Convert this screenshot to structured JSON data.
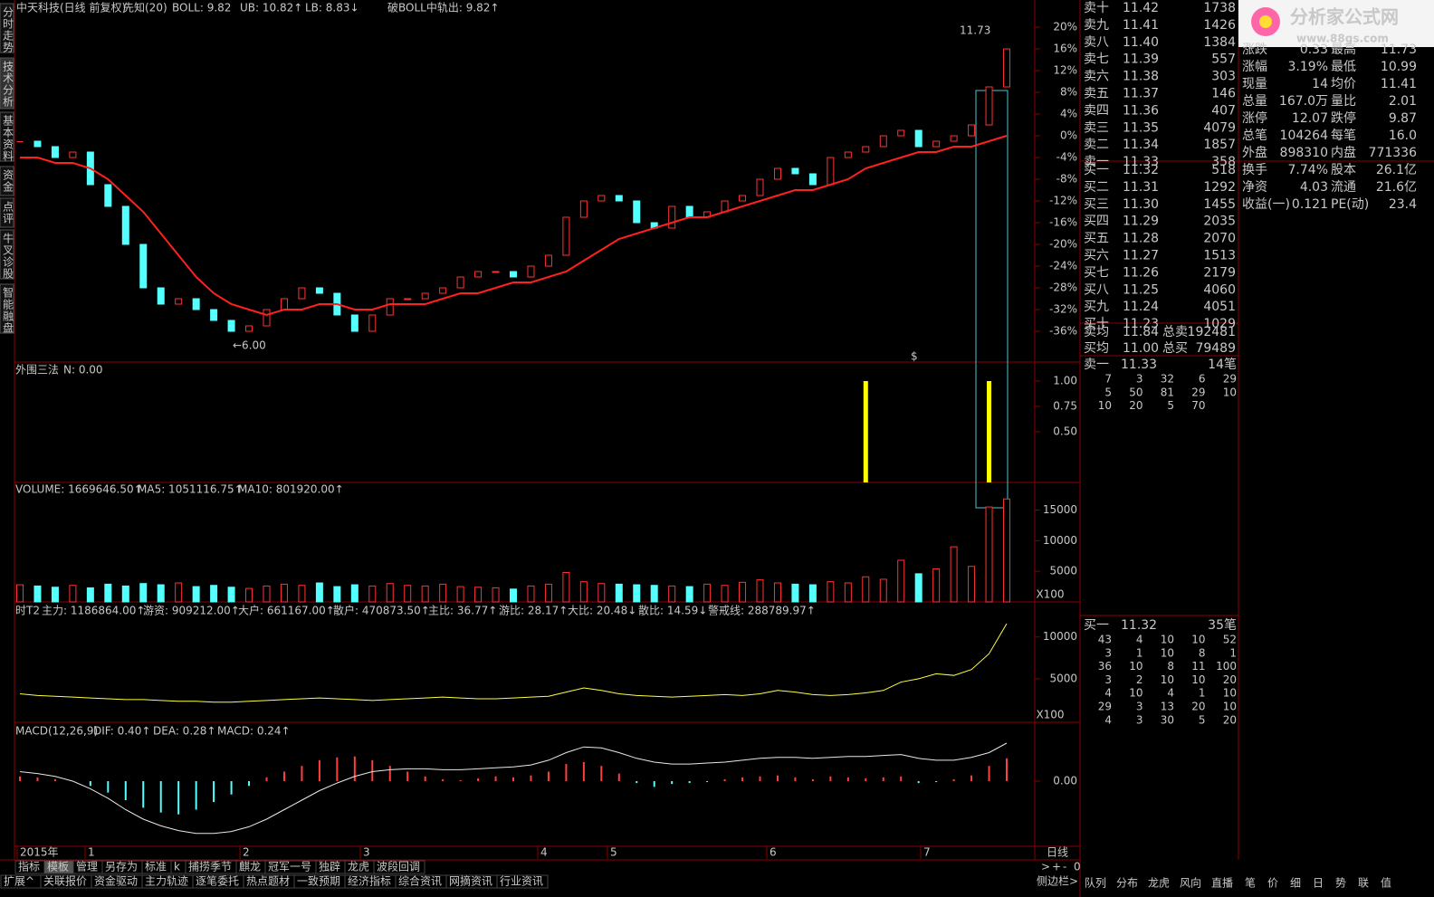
{
  "side_tabs": [
    "分时走势",
    "技术分析",
    "基本资料",
    "资金",
    "点评",
    "牛叉诊股",
    "智能融盘"
  ],
  "header": {
    "stock": "中天科技",
    "period": "(日线 前复权)",
    "indicator": "先知(20)",
    "boll": "BOLL: 9.82",
    "ub": "UB: 10.82↑",
    "lb": "LB: 8.83↓",
    "boll_break": "破BOLL中轨出: 9.82↑"
  },
  "main": {
    "ylim": [
      -42,
      22
    ],
    "yticks": [
      {
        "value": 20,
        "label": "20%"
      },
      {
        "value": 16,
        "label": "16%"
      },
      {
        "value": 12,
        "label": "12%"
      },
      {
        "value": 8,
        "label": "8%"
      },
      {
        "value": 4,
        "label": "4%"
      },
      {
        "value": 0,
        "label": "0%"
      },
      {
        "value": -4,
        "label": "-4%"
      },
      {
        "value": -8,
        "label": "-8%"
      },
      {
        "value": -12,
        "label": "-12%"
      },
      {
        "value": -16,
        "label": "-16%"
      },
      {
        "value": -20,
        "label": "-20%"
      },
      {
        "value": -24,
        "label": "-24%"
      },
      {
        "value": -28,
        "label": "-28%"
      },
      {
        "value": -32,
        "label": "-32%"
      },
      {
        "value": -36,
        "label": "-36%"
      }
    ],
    "closes": [
      -1,
      -2,
      -4,
      -3,
      -9,
      -13,
      -20,
      -28,
      -31,
      -30,
      -32,
      -34,
      -36,
      -35,
      -32,
      -30,
      -28,
      -29,
      -33,
      -36,
      -33,
      -30,
      -30,
      -29,
      -28,
      -26,
      -25,
      -25,
      -26,
      -24,
      -22,
      -15,
      -12,
      -11,
      -12,
      -16,
      -17,
      -13,
      -15,
      -14,
      -12,
      -11,
      -8,
      -6,
      -7,
      -9,
      -4,
      -3,
      -2,
      0,
      1,
      -2,
      -1,
      0,
      2,
      9,
      16
    ],
    "ma": [
      -4,
      -4,
      -5,
      -5,
      -6,
      -8,
      -11,
      -14,
      -18,
      -22,
      -26,
      -29,
      -31,
      -32,
      -33,
      -32,
      -32,
      -31,
      -31,
      -32,
      -32,
      -31,
      -31,
      -31,
      -30,
      -29,
      -29,
      -28,
      -27,
      -27,
      -26,
      -25,
      -23,
      -21,
      -19,
      -18,
      -17,
      -16,
      -15,
      -15,
      -14,
      -13,
      -12,
      -11,
      -10,
      -10,
      -9,
      -8,
      -6,
      -5,
      -4,
      -3,
      -3,
      -2,
      -2,
      -1,
      0
    ],
    "high_label": "11.73",
    "low_label": "←6.00",
    "marker": "$"
  },
  "signal": {
    "title": "外围三法",
    "n": "N: 0.00",
    "ylim": [
      0,
      1
    ],
    "yticks": [
      {
        "value": 1,
        "label": "1.00"
      },
      {
        "value": 0.75,
        "label": "0.75"
      },
      {
        "value": 0.5,
        "label": "0.50"
      }
    ],
    "values": [
      0,
      0,
      0,
      0,
      0,
      0,
      0,
      0,
      0,
      0,
      0,
      0,
      0,
      0,
      0,
      0,
      0,
      0,
      0,
      0,
      0,
      0,
      0,
      0,
      0,
      0,
      0,
      0,
      0,
      0,
      0,
      0,
      0,
      0,
      0,
      0,
      0,
      0,
      0,
      0,
      0,
      0,
      0,
      0,
      0,
      0,
      0,
      0,
      1,
      0,
      0,
      0,
      0,
      0,
      0,
      1,
      0
    ]
  },
  "volume": {
    "labels": [
      "VOLUME: 1669646.50↑",
      "MA5: 1051116.75↑",
      "MA10: 801920.00↑"
    ],
    "label_colors": [
      "#e0e0e0",
      "#e0e0e0",
      "#ffff40"
    ],
    "ylim": [
      0,
      19500
    ],
    "yticks": [
      5000,
      10000,
      15000
    ],
    "unit": "X100",
    "values": [
      2800,
      2600,
      2400,
      2700,
      2300,
      2900,
      2600,
      3000,
      2800,
      3100,
      2500,
      2700,
      2400,
      2200,
      2600,
      2900,
      2700,
      3100,
      2500,
      2800,
      2600,
      3000,
      2700,
      2600,
      2900,
      2500,
      2400,
      2300,
      2100,
      2600,
      2900,
      4800,
      3300,
      3000,
      2900,
      2800,
      2700,
      2600,
      2500,
      2900,
      2700,
      3200,
      3600,
      3100,
      2900,
      2800,
      3300,
      3100,
      4100,
      3700,
      6800,
      4600,
      5400,
      9000,
      5800,
      15500,
      16800
    ]
  },
  "fund": {
    "labels": [
      "时T2",
      "主力: 1186864.00↑",
      "游资: 909212.00↑",
      "大户: 661167.00↑",
      "散户: 470873.50↑",
      "主比: 36.77↑",
      "游比: 28.17↑",
      "大比: 20.48↓",
      "散比: 14.59↓",
      "警戒线: 288789.97↑"
    ],
    "label_colors": [
      "#e0e0e0",
      "#ffff40",
      "#40ff40",
      "#ff5050",
      "#e0e0e0",
      "#e0e0e0",
      "#40ff40",
      "#ff5050",
      "#80c0ff",
      "#ff60ff"
    ],
    "ylim": [
      0,
      14200
    ],
    "yticks": [
      5000,
      10000
    ],
    "unit": "X100",
    "main_force": [
      3200,
      3000,
      2900,
      2800,
      2700,
      2600,
      2500,
      2500,
      2400,
      2300,
      2300,
      2200,
      2200,
      2300,
      2400,
      2500,
      2600,
      2700,
      2600,
      2500,
      2400,
      2500,
      2600,
      2700,
      2800,
      2700,
      2600,
      2600,
      2700,
      2800,
      2900,
      3400,
      3900,
      3600,
      3200,
      3000,
      2900,
      2800,
      2900,
      3000,
      3100,
      3000,
      3200,
      3600,
      3400,
      3100,
      3000,
      3100,
      3300,
      3600,
      4600,
      5000,
      5600,
      5400,
      6100,
      8000,
      11600
    ]
  },
  "macd": {
    "labels": [
      "MACD(12,26,9)",
      "DIF: 0.40↑",
      "DEA: 0.28↑",
      "MACD: 0.24↑"
    ],
    "label_colors": [
      "#e0e0e0",
      "#e0e0e0",
      "#ffff40",
      "#ff60ff"
    ],
    "ylim": [
      -0.6,
      0.6
    ],
    "yticks": [
      {
        "value": 0,
        "label": "0.00"
      }
    ],
    "hist": [
      0.05,
      0.04,
      0.02,
      0.0,
      -0.05,
      -0.12,
      -0.2,
      -0.28,
      -0.33,
      -0.35,
      -0.3,
      -0.22,
      -0.14,
      -0.05,
      0.04,
      0.1,
      0.16,
      0.22,
      0.25,
      0.26,
      0.22,
      0.16,
      0.1,
      0.05,
      0.02,
      0.01,
      0.03,
      0.05,
      0.04,
      0.06,
      0.1,
      0.18,
      0.2,
      0.16,
      0.08,
      -0.02,
      -0.06,
      -0.03,
      -0.02,
      -0.01,
      0.02,
      0.04,
      0.05,
      0.06,
      0.04,
      0.02,
      0.05,
      0.04,
      0.03,
      0.04,
      0.05,
      -0.02,
      -0.01,
      0.02,
      0.06,
      0.16,
      0.24
    ],
    "dif": [
      0.1,
      0.08,
      0.05,
      0.0,
      -0.08,
      -0.18,
      -0.3,
      -0.4,
      -0.47,
      -0.52,
      -0.55,
      -0.55,
      -0.53,
      -0.48,
      -0.4,
      -0.3,
      -0.2,
      -0.1,
      -0.02,
      0.05,
      0.1,
      0.12,
      0.13,
      0.13,
      0.12,
      0.12,
      0.13,
      0.14,
      0.15,
      0.17,
      0.22,
      0.3,
      0.36,
      0.35,
      0.3,
      0.24,
      0.2,
      0.18,
      0.18,
      0.19,
      0.2,
      0.22,
      0.24,
      0.25,
      0.25,
      0.24,
      0.25,
      0.26,
      0.26,
      0.27,
      0.28,
      0.24,
      0.22,
      0.22,
      0.25,
      0.3,
      0.4
    ]
  },
  "date_axis": {
    "labels": [
      "2015年",
      "1",
      "2",
      "3",
      "4",
      "5",
      "6",
      "7"
    ],
    "period": "日线"
  },
  "toolbar": {
    "row1": [
      "指标",
      "模板",
      "管理",
      "另存为",
      "标准",
      "k",
      "捕捞季节",
      "麒龙",
      "冠军一号",
      "独辟",
      "龙虎",
      "波段回调"
    ],
    "row2": [
      "扩展^",
      "关联报价",
      "资金驱动",
      "主力轨迹",
      "逐笔委托",
      "热点题材",
      "一致预期",
      "经济指标",
      "综合资讯",
      "网摘资讯",
      "行业资讯"
    ],
    "controls": [
      ">",
      "+",
      "-",
      "0"
    ],
    "sidebar": "侧边栏>",
    "tabs": [
      "队列",
      "分布",
      "龙虎",
      "风向",
      "直播"
    ],
    "tabs2": [
      "笔",
      "价",
      "细",
      "日",
      "势",
      "联",
      "值"
    ]
  },
  "order_book": {
    "asks": [
      [
        "卖十",
        "11.42",
        1738
      ],
      [
        "卖九",
        "11.41",
        1426
      ],
      [
        "卖八",
        "11.40",
        1384
      ],
      [
        "卖七",
        "11.39",
        557
      ],
      [
        "卖六",
        "11.38",
        303
      ],
      [
        "卖五",
        "11.37",
        146
      ],
      [
        "卖四",
        "11.36",
        407
      ],
      [
        "卖三",
        "11.35",
        4079
      ],
      [
        "卖二",
        "11.34",
        1857
      ],
      [
        "卖一",
        "11.33",
        358
      ]
    ],
    "bids": [
      [
        "买一",
        "11.32",
        518
      ],
      [
        "买二",
        "11.31",
        1292
      ],
      [
        "买三",
        "11.30",
        1455
      ],
      [
        "买四",
        "11.29",
        2035
      ],
      [
        "买五",
        "11.28",
        2070
      ],
      [
        "买六",
        "11.27",
        1513
      ],
      [
        "买七",
        "11.26",
        2179
      ],
      [
        "买八",
        "11.25",
        4060
      ],
      [
        "买九",
        "11.24",
        4051
      ],
      [
        "买十",
        "11.23",
        1029
      ]
    ],
    "avg": [
      [
        "卖均",
        "11.84",
        "总卖",
        192481
      ],
      [
        "买均",
        "11.00",
        "总买",
        79489
      ]
    ],
    "sell_queue": {
      "head": [
        "卖一",
        "11.33",
        "14笔"
      ],
      "rows": [
        [
          7,
          3,
          32,
          6,
          29
        ],
        [
          5,
          50,
          81,
          29,
          10
        ],
        [
          10,
          20,
          5,
          70
        ]
      ]
    },
    "buy_queue": {
      "head": [
        "买一",
        "11.32",
        "35笔"
      ],
      "rows": [
        [
          43,
          4,
          10,
          10,
          52
        ],
        [
          3,
          1,
          10,
          8,
          1
        ],
        [
          36,
          10,
          8,
          11,
          100
        ],
        [
          3,
          2,
          10,
          10,
          20
        ],
        [
          4,
          10,
          4,
          1,
          10
        ],
        [
          29,
          3,
          13,
          20,
          10
        ],
        [
          4,
          3,
          30,
          5,
          20
        ]
      ]
    }
  },
  "info": [
    [
      "涨跌",
      "0.33",
      "最高",
      "11.73"
    ],
    [
      "涨幅",
      "3.19%",
      "最低",
      "10.99"
    ],
    [
      "现量",
      "14",
      "均价",
      "11.41"
    ],
    [
      "总量",
      "167.0万",
      "量比",
      "2.01"
    ],
    [
      "涨停",
      "12.07",
      "跌停",
      "9.87"
    ],
    [
      "总笔",
      "104264",
      "每笔",
      "16.0"
    ],
    [
      "外盘",
      "898310",
      "内盘",
      "771336"
    ],
    [
      "换手",
      "7.74%",
      "股本",
      "26.1亿"
    ],
    [
      "净资",
      "4.03",
      "流通",
      "21.6亿"
    ],
    [
      "收益(一)",
      "0.121",
      "PE(动)",
      "23.4"
    ]
  ],
  "logo": {
    "name": "分析家公式网",
    "url": "www.88gs.com"
  }
}
